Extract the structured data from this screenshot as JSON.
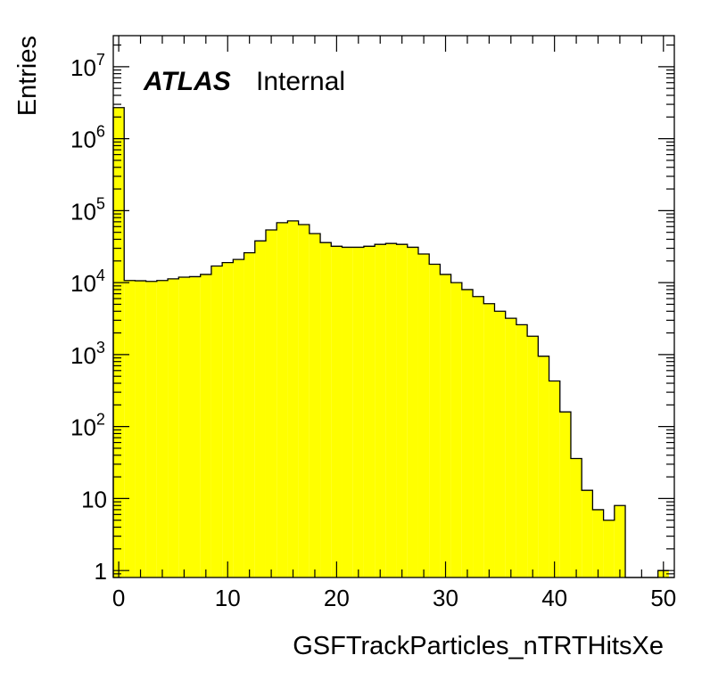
{
  "chart_data": {
    "type": "bar",
    "style": "histogram",
    "title": "",
    "xlabel": "GSFTrackParticles_nTRTHitsXe",
    "ylabel": "Entries",
    "annotation": {
      "bold": "ATLAS",
      "normal": "Internal"
    },
    "xlim": [
      -0.5,
      51
    ],
    "ylim": [
      0.8,
      27000000
    ],
    "yscale": "log",
    "grid": false,
    "legend": "none",
    "xticks": [
      {
        "value": 0,
        "label": "0"
      },
      {
        "value": 10,
        "label": "10"
      },
      {
        "value": 20,
        "label": "20"
      },
      {
        "value": 30,
        "label": "30"
      },
      {
        "value": 40,
        "label": "40"
      },
      {
        "value": 50,
        "label": "50"
      }
    ],
    "yticks": [
      {
        "value": 1,
        "label": "1",
        "base": "",
        "exp": ""
      },
      {
        "value": 10,
        "label": "10",
        "base": "",
        "exp": ""
      },
      {
        "value": 100,
        "label": "",
        "base": "10",
        "exp": "2"
      },
      {
        "value": 1000,
        "label": "",
        "base": "10",
        "exp": "3"
      },
      {
        "value": 10000,
        "label": "",
        "base": "10",
        "exp": "4"
      },
      {
        "value": 100000,
        "label": "",
        "base": "10",
        "exp": "5"
      },
      {
        "value": 1000000,
        "label": "",
        "base": "10",
        "exp": "6"
      },
      {
        "value": 10000000,
        "label": "",
        "base": "10",
        "exp": "7"
      }
    ],
    "bin_edges": [
      -0.5,
      50.5
    ],
    "bins": 51,
    "fill_color": "#ffff00",
    "line_color": "#000000",
    "values": [
      2700000,
      10700,
      10600,
      10400,
      10700,
      11300,
      11900,
      12100,
      13000,
      17000,
      19000,
      21000,
      26000,
      38000,
      54000,
      68000,
      72000,
      64000,
      48000,
      36000,
      32000,
      31000,
      31000,
      32000,
      34000,
      35000,
      34000,
      31000,
      25000,
      18000,
      13000,
      10000,
      8000,
      6400,
      5100,
      4000,
      3200,
      2600,
      1800,
      950,
      430,
      160,
      36,
      13,
      7,
      5,
      8,
      0,
      0,
      0,
      1
    ]
  }
}
